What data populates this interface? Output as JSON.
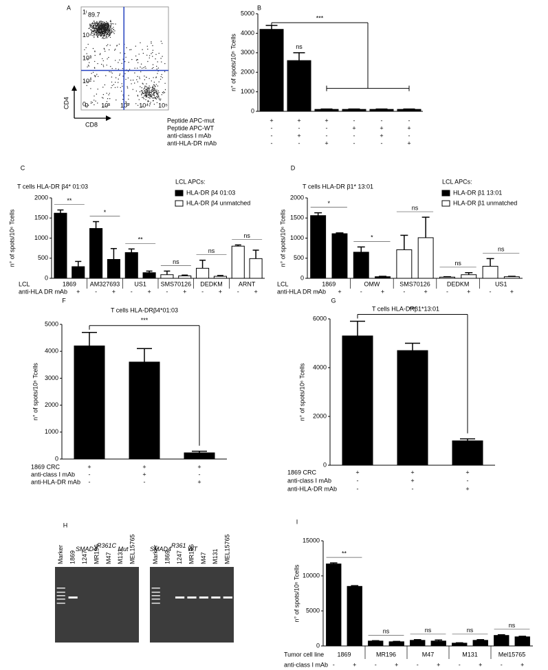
{
  "chart_data": [
    {
      "type": "flow",
      "panel": "A",
      "quadrant_label": "89.7",
      "xlabel": "CD8",
      "ylabel": "CD4",
      "xticks": [
        0,
        {
          "value": 100,
          "label": "10²"
        },
        {
          "value": 1000,
          "label": "10³"
        },
        {
          "value": 10000,
          "label": "10⁴"
        },
        {
          "value": 100000,
          "label": "10⁵"
        }
      ],
      "yticks": [
        0,
        {
          "value": 100,
          "label": "10²"
        },
        {
          "value": 1000,
          "label": "10³"
        },
        {
          "value": 10000,
          "label": "10⁴"
        },
        {
          "value": 100000,
          "label": "10⁵"
        }
      ],
      "xlim": [
        0,
        100000
      ],
      "ylim": [
        0,
        100000
      ],
      "log": true,
      "gate_x": 900,
      "gate_y": 300,
      "gate_color": "#2340c0"
    },
    {
      "type": "bar",
      "panel": "B",
      "ylabel": "n° of spots/10⁶ Tcells",
      "values": [
        4200,
        2600,
        100,
        100,
        100,
        100
      ],
      "errors": [
        200,
        400,
        20,
        20,
        20,
        20
      ],
      "colors": [
        "#000000",
        "#000000",
        "#000000",
        "#000000",
        "#000000",
        "#000000"
      ],
      "ylim": [
        0,
        5000
      ],
      "yticks": [
        0,
        1000,
        2000,
        3000,
        4000,
        5000
      ],
      "value_notes": [
        null,
        "ns",
        null,
        null,
        null,
        null
      ],
      "bracket": "***",
      "rows": [
        {
          "label": "Peptide APC-mut",
          "marks": [
            "+",
            "+",
            "+",
            "-",
            "-",
            "-"
          ]
        },
        {
          "label": "Peptide APC-WT",
          "marks": [
            "-",
            "-",
            "-",
            "+",
            "+",
            "+"
          ]
        },
        {
          "label": "anti-class I mAb",
          "marks": [
            "-",
            "+",
            "-",
            "-",
            "+",
            "-"
          ]
        },
        {
          "label": "anti-HLA-DR mAb",
          "marks": [
            "-",
            "-",
            "+",
            "-",
            "-",
            "+"
          ]
        }
      ]
    },
    {
      "type": "bar",
      "panel": "C",
      "title": "T cells HLA-DR β4* 01:03",
      "ylabel": "n° of spots/10⁶ Tcells",
      "legend": {
        "title": "LCL APCs:",
        "entries": [
          {
            "label": "HLA-DR β4 01:03",
            "color": "#000000"
          },
          {
            "label": "HLA-DR β4 unmatched",
            "color": "#ffffff"
          }
        ]
      },
      "group_label": "LCL",
      "groups": [
        "1869",
        "AM327693",
        "US1",
        "SMS70126",
        "DEDKM",
        "ARNT"
      ],
      "significance": [
        "**",
        "*",
        "**",
        "ns",
        "ns",
        "ns"
      ],
      "values": [
        1620,
        290,
        1240,
        470,
        640,
        140,
        90,
        60,
        250,
        50,
        800,
        490
      ],
      "errors": [
        80,
        130,
        170,
        270,
        90,
        40,
        90,
        20,
        200,
        20,
        30,
        210
      ],
      "colors": [
        "#000000",
        "#000000",
        "#000000",
        "#000000",
        "#000000",
        "#000000",
        "#ffffff",
        "#ffffff",
        "#ffffff",
        "#ffffff",
        "#ffffff",
        "#ffffff"
      ],
      "ylim": [
        0,
        2000
      ],
      "yticks": [
        0,
        500,
        1000,
        1500,
        2000
      ],
      "rows": [
        {
          "label": "anti-HLA DR mAb",
          "marks": [
            "-",
            "+",
            "-",
            "+",
            "-",
            "+",
            "-",
            "+",
            "-",
            "+",
            "-",
            "+"
          ]
        }
      ]
    },
    {
      "type": "bar",
      "panel": "D",
      "title": "T cells HLA-DR β1* 13:01",
      "ylabel": "n° of spots/10⁶ Tcells",
      "legend": {
        "title": "LCL APCs:",
        "entries": [
          {
            "label": "HLA-DR β1 13:01",
            "color": "#000000"
          },
          {
            "label": "HLA-DR β1 unmatched",
            "color": "#ffffff"
          }
        ]
      },
      "group_label": "LCL",
      "groups": [
        "1869",
        "OMW",
        "SMS70126",
        "DEDKM",
        "US1"
      ],
      "significance": [
        "*",
        "*",
        "ns",
        "ns",
        "ns"
      ],
      "values": [
        1560,
        1110,
        650,
        40,
        710,
        1010,
        30,
        90,
        300,
        40
      ],
      "errors": [
        70,
        20,
        130,
        10,
        360,
        510,
        10,
        50,
        190,
        10
      ],
      "colors": [
        "#000000",
        "#000000",
        "#000000",
        "#000000",
        "#ffffff",
        "#ffffff",
        "#ffffff",
        "#ffffff",
        "#ffffff",
        "#ffffff"
      ],
      "ylim": [
        0,
        2000
      ],
      "yticks": [
        0,
        500,
        1000,
        1500,
        2000
      ],
      "rows": [
        {
          "label": "anti-HLA DR mAb",
          "marks": [
            "-",
            "+",
            "-",
            "+",
            "-",
            "+",
            "-",
            "+",
            "-",
            "+"
          ]
        }
      ]
    },
    {
      "type": "bar",
      "panel": "F",
      "title": "T cells HLA-DRβ4*01:03",
      "ylabel": "n° of spots/10⁶ Tcells",
      "values": [
        4200,
        3600,
        230
      ],
      "errors": [
        500,
        500,
        60
      ],
      "colors": [
        "#000000",
        "#000000",
        "#000000"
      ],
      "ylim": [
        0,
        5000
      ],
      "yticks": [
        0,
        1000,
        2000,
        3000,
        4000,
        5000
      ],
      "bracket": "***",
      "rows": [
        {
          "label": "1869 CRC",
          "marks": [
            "+",
            "+",
            "+"
          ]
        },
        {
          "label": "anti-class I mAb",
          "marks": [
            "-",
            "+",
            "-"
          ]
        },
        {
          "label": "anti-HLA-DR mAb",
          "marks": [
            "-",
            "-",
            "+"
          ]
        }
      ]
    },
    {
      "type": "bar",
      "panel": "G",
      "title": "T cells HLA-DRβ1*13:01",
      "ylabel": "n° of spots/10⁶ Tcells",
      "values": [
        5300,
        4700,
        1000
      ],
      "errors": [
        600,
        300,
        80
      ],
      "colors": [
        "#000000",
        "#000000",
        "#000000"
      ],
      "ylim": [
        0,
        6000
      ],
      "yticks": [
        0,
        2000,
        4000,
        6000
      ],
      "bracket": "***",
      "rows": [
        {
          "label": "1869 CRC",
          "marks": [
            "+",
            "+",
            "+"
          ]
        },
        {
          "label": "anti-class I mAb",
          "marks": [
            "-",
            "+",
            "-"
          ]
        },
        {
          "label": "anti-HLA-DR mAb",
          "marks": [
            "-",
            "-",
            "+"
          ]
        }
      ]
    },
    {
      "type": "gel",
      "panel": "H",
      "gels": [
        {
          "gene": "SMAD4",
          "allele": "R361C",
          "status": "Mut",
          "lanes": [
            "Marker",
            "1869",
            "1247",
            "MR196",
            "M47",
            "M131",
            "MEL15765"
          ]
        },
        {
          "gene": "SMAD4",
          "allele": "R361",
          "status": "WT",
          "lanes": [
            "Marker",
            "1869",
            "1247",
            "MR196",
            "M47",
            "M131",
            "MEL15765"
          ]
        }
      ]
    },
    {
      "type": "bar",
      "panel": "I",
      "ylabel": "n° of spots/10⁶ Tcells",
      "group_label": "Tumor cell line",
      "groups": [
        "1869",
        "MR196",
        "M47",
        "M131",
        "Mel15765"
      ],
      "significance": [
        "**",
        "ns",
        "ns",
        "ns",
        "ns"
      ],
      "values": [
        11700,
        8500,
        700,
        600,
        800,
        700,
        400,
        800,
        1500,
        1300
      ],
      "errors": [
        150,
        100,
        50,
        50,
        100,
        150,
        50,
        100,
        100,
        80
      ],
      "colors": [
        "#000000",
        "#000000",
        "#000000",
        "#000000",
        "#000000",
        "#000000",
        "#000000",
        "#000000",
        "#000000",
        "#000000"
      ],
      "ylim": [
        0,
        15000
      ],
      "yticks": [
        0,
        5000,
        10000,
        15000
      ],
      "rows": [
        {
          "label": "anti-class I mAb",
          "marks": [
            "-",
            "+",
            "-",
            "+",
            "-",
            "+",
            "-",
            "+",
            "-",
            "+"
          ]
        }
      ]
    }
  ]
}
